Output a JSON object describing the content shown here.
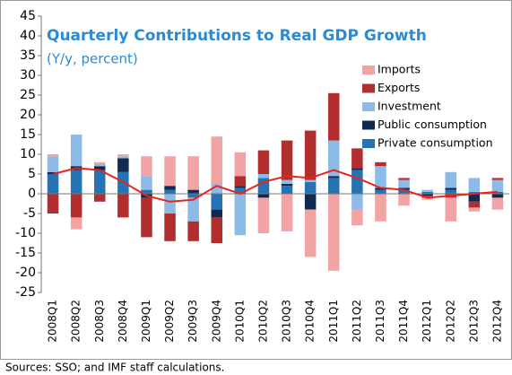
{
  "chart_data": {
    "type": "bar",
    "title": "Quarterly Contributions to Real GDP Growth",
    "subtitle": "(Y/y, percent)",
    "source": "Sources: SSO; and IMF staff calculations.",
    "stacked": true,
    "categories": [
      "2008Q1",
      "2008Q2",
      "2008Q3",
      "2008Q4",
      "2009Q1",
      "2009Q2",
      "2009Q3",
      "2009Q4",
      "2010Q1",
      "2010Q2",
      "2010Q3",
      "2010Q4",
      "2011Q1",
      "2011Q2",
      "2011Q3",
      "2011Q4",
      "2012Q1",
      "2012Q2",
      "2012Q3",
      "2012Q4"
    ],
    "series": [
      {
        "name": "Imports",
        "color": "#f2a3a3",
        "values": [
          0.5,
          -3,
          0.5,
          0.5,
          5,
          7.5,
          8.5,
          12,
          6,
          -9,
          -9.5,
          -12,
          -19.5,
          -4,
          -7,
          -3,
          -0.5,
          -6,
          -1,
          -3
        ]
      },
      {
        "name": "Exports",
        "color": "#b22e2e",
        "values": [
          -5,
          -6,
          -2,
          -6,
          -10,
          -7,
          -5,
          -6.5,
          2.5,
          6,
          10,
          12.5,
          12,
          5,
          1,
          0.5,
          -0.5,
          -1,
          -1.5,
          0.5
        ]
      },
      {
        "name": "Investment",
        "color": "#8cbbe8",
        "values": [
          4,
          8,
          0.5,
          0.5,
          3.5,
          -5,
          -6,
          2.5,
          -10.5,
          1,
          1,
          0.5,
          9,
          -4,
          5.5,
          2,
          0.5,
          4,
          3.5,
          3
        ]
      },
      {
        "name": "Public consumption",
        "color": "#0f2c50",
        "values": [
          0.5,
          1,
          1,
          3.5,
          -1,
          1,
          1,
          -2,
          0.5,
          -1,
          0.5,
          -4,
          0.5,
          0.5,
          0.5,
          0.5,
          -0.5,
          0.5,
          -2,
          -1
        ]
      },
      {
        "name": "Private consumption",
        "color": "#2673b3",
        "values": [
          5,
          6,
          6,
          5.5,
          1,
          1,
          -1,
          -4,
          1.5,
          4,
          2,
          3,
          4,
          6,
          1,
          1,
          0.5,
          1,
          0.5,
          0.5
        ]
      }
    ],
    "line": {
      "color": "#e8241c",
      "values": [
        5,
        6.5,
        6,
        3,
        -0.5,
        -2,
        -1.5,
        2,
        0,
        3,
        4.5,
        4,
        6,
        4,
        1.5,
        1,
        -1,
        -0.5,
        0,
        0.5
      ]
    },
    "ylim": [
      -25,
      45
    ],
    "yticks": [
      -25,
      -20,
      -15,
      -10,
      -5,
      0,
      5,
      10,
      15,
      20,
      25,
      30,
      35,
      40,
      45
    ],
    "grid": false
  }
}
